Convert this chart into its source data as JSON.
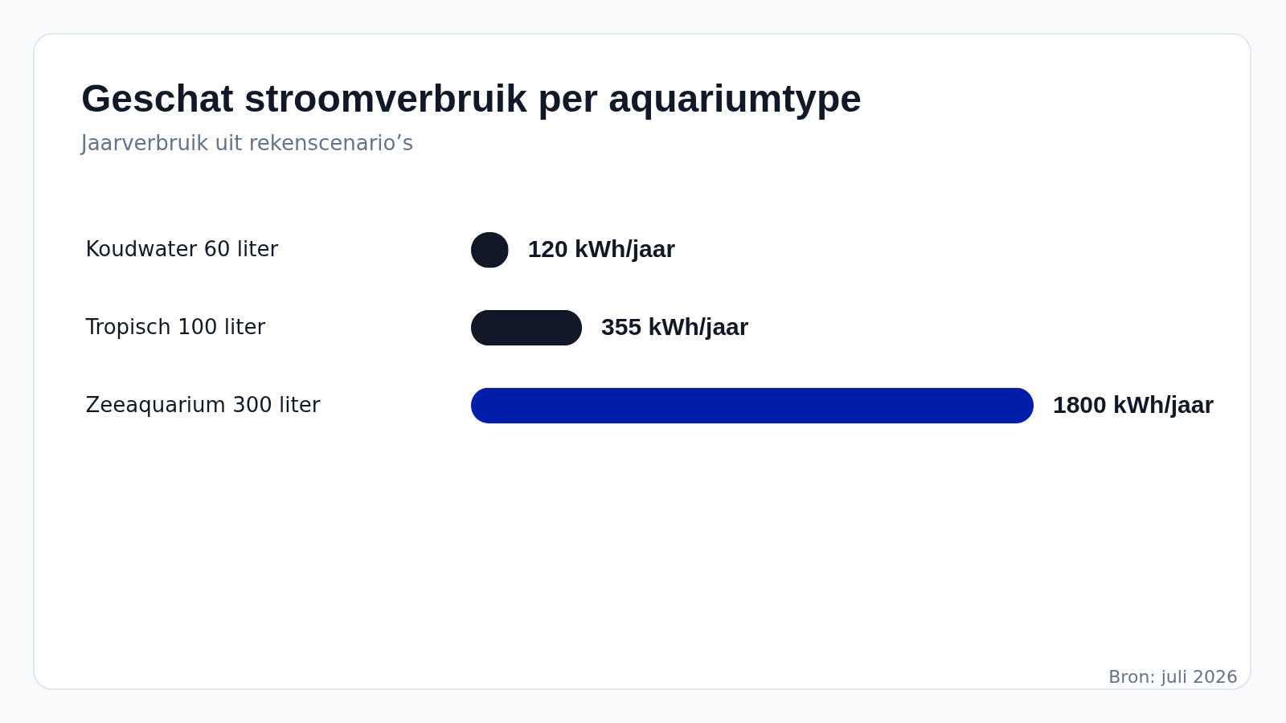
{
  "chart_data": {
    "type": "bar",
    "orientation": "horizontal",
    "title": "Geschat stroomverbruik per aquariumtype",
    "subtitle": "Jaarverbruik uit rekenscenario’s",
    "categories": [
      "Koudwater 60 liter",
      "Tropisch 100 liter",
      "Zeeaquarium 300 liter"
    ],
    "values": [
      120,
      355,
      1800
    ],
    "colors": [
      "#111827",
      "#111827",
      "#001eaa"
    ],
    "value_labels": [
      "120 kWh/jaar",
      "355 kWh/jaar",
      "1800 kWh/jaar"
    ],
    "annotations": [
      "Bron: juli 2026"
    ]
  }
}
